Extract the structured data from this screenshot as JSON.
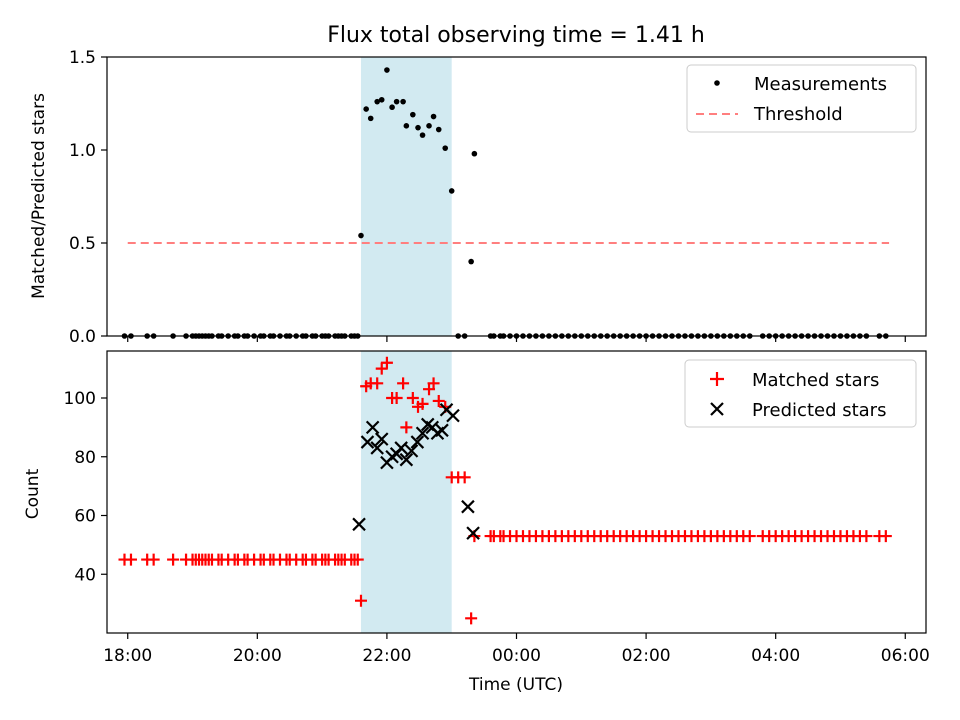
{
  "title": "Flux total observing time = 1.41 h",
  "colors": {
    "measurement": "#000000",
    "threshold": "#ff7f7f",
    "matched": "#ff0000",
    "predicted": "#000000",
    "span": "#add8e6"
  },
  "chart_data": [
    {
      "type": "scatter",
      "ylabel": "Matched/Predicted stars",
      "xlim": [
        17.68,
        30.32
      ],
      "ylim": [
        0,
        1.5
      ],
      "yticks": [
        0,
        0.5,
        1.0,
        1.5
      ],
      "ytick_labels": [
        "0.0",
        "0.5",
        "1.0",
        "1.5"
      ],
      "span": [
        21.6,
        23.0
      ],
      "threshold": {
        "label": "Threshold",
        "value": 0.5,
        "x_start": 18.0,
        "x_end": 29.75
      },
      "measurements": {
        "label": "Measurements",
        "x": [
          17.95,
          18.05,
          18.3,
          18.4,
          18.7,
          18.9,
          19.0,
          19.05,
          19.1,
          19.15,
          19.2,
          19.25,
          19.3,
          19.4,
          19.45,
          19.55,
          19.65,
          19.7,
          19.8,
          19.85,
          19.95,
          20.05,
          20.1,
          20.2,
          20.25,
          20.35,
          20.45,
          20.5,
          20.6,
          20.7,
          20.75,
          20.85,
          20.9,
          21.0,
          21.05,
          21.1,
          21.2,
          21.25,
          21.3,
          21.35,
          21.45,
          21.5,
          21.55,
          21.6,
          21.68,
          21.75,
          21.85,
          21.92,
          22.0,
          22.08,
          22.15,
          22.25,
          22.3,
          22.4,
          22.48,
          22.55,
          22.65,
          22.72,
          22.8,
          22.9,
          23.0,
          23.1,
          23.2,
          23.3,
          23.35,
          23.6,
          23.65,
          23.75,
          23.8,
          23.9,
          24.0,
          24.1,
          24.2,
          24.3,
          24.4,
          24.5,
          24.6,
          24.7,
          24.8,
          24.9,
          25.0,
          25.1,
          25.2,
          25.3,
          25.4,
          25.5,
          25.6,
          25.7,
          25.8,
          25.9,
          26.0,
          26.1,
          26.2,
          26.3,
          26.4,
          26.5,
          26.6,
          26.7,
          26.8,
          26.9,
          27.0,
          27.1,
          27.2,
          27.3,
          27.4,
          27.5,
          27.6,
          27.8,
          27.9,
          28.0,
          28.1,
          28.2,
          28.3,
          28.4,
          28.5,
          28.6,
          28.7,
          28.8,
          28.9,
          29.0,
          29.1,
          29.2,
          29.3,
          29.4,
          29.6,
          29.7
        ],
        "y": [
          0,
          0,
          0,
          0,
          0,
          0,
          0,
          0,
          0,
          0,
          0,
          0,
          0,
          0,
          0,
          0,
          0,
          0,
          0,
          0,
          0,
          0,
          0,
          0,
          0,
          0,
          0,
          0,
          0,
          0,
          0,
          0,
          0,
          0,
          0,
          0,
          0,
          0,
          0,
          0,
          0,
          0,
          0,
          0.54,
          1.22,
          1.17,
          1.26,
          1.27,
          1.43,
          1.23,
          1.26,
          1.26,
          1.13,
          1.19,
          1.12,
          1.08,
          1.13,
          1.18,
          1.11,
          1.01,
          0.78,
          0,
          0,
          0.4,
          0.98,
          0,
          0,
          0,
          0,
          0,
          0,
          0,
          0,
          0,
          0,
          0,
          0,
          0,
          0,
          0,
          0,
          0,
          0,
          0,
          0,
          0,
          0,
          0,
          0,
          0,
          0,
          0,
          0,
          0,
          0,
          0,
          0,
          0,
          0,
          0,
          0,
          0,
          0,
          0,
          0,
          0,
          0,
          0,
          0,
          0,
          0,
          0,
          0,
          0,
          0,
          0,
          0,
          0,
          0,
          0,
          0,
          0,
          0,
          0,
          0,
          0
        ]
      },
      "legend": [
        "Measurements",
        "Threshold"
      ],
      "legend_loc": "upper right"
    },
    {
      "type": "scatter",
      "ylabel": "Count",
      "xlabel": "Time (UTC)",
      "xlim": [
        17.68,
        30.32
      ],
      "ylim": [
        20,
        116
      ],
      "yticks": [
        40,
        60,
        80,
        100
      ],
      "ytick_labels": [
        "40",
        "60",
        "80",
        "100"
      ],
      "xticks": [
        18,
        20,
        22,
        24,
        26,
        28,
        30
      ],
      "xtick_labels": [
        "18:00",
        "20:00",
        "22:00",
        "00:00",
        "02:00",
        "04:00",
        "06:00"
      ],
      "span": [
        21.6,
        23.0
      ],
      "matched": {
        "label": "Matched stars",
        "x": [
          17.95,
          18.05,
          18.3,
          18.4,
          18.7,
          18.9,
          19.0,
          19.05,
          19.1,
          19.15,
          19.2,
          19.25,
          19.3,
          19.4,
          19.45,
          19.55,
          19.65,
          19.7,
          19.8,
          19.85,
          19.95,
          20.05,
          20.1,
          20.2,
          20.25,
          20.35,
          20.45,
          20.5,
          20.6,
          20.7,
          20.75,
          20.85,
          20.9,
          21.0,
          21.05,
          21.1,
          21.2,
          21.25,
          21.3,
          21.35,
          21.45,
          21.5,
          21.55,
          21.6,
          21.68,
          21.75,
          21.85,
          21.92,
          22.0,
          22.08,
          22.15,
          22.25,
          22.3,
          22.4,
          22.48,
          22.55,
          22.65,
          22.72,
          22.8,
          22.9,
          23.0,
          23.1,
          23.2,
          23.3,
          23.35,
          23.6,
          23.65,
          23.75,
          23.8,
          23.9,
          24.0,
          24.1,
          24.2,
          24.3,
          24.4,
          24.5,
          24.6,
          24.7,
          24.8,
          24.9,
          25.0,
          25.1,
          25.2,
          25.3,
          25.4,
          25.5,
          25.6,
          25.7,
          25.8,
          25.9,
          26.0,
          26.1,
          26.2,
          26.3,
          26.4,
          26.5,
          26.6,
          26.7,
          26.8,
          26.9,
          27.0,
          27.1,
          27.2,
          27.3,
          27.4,
          27.5,
          27.6,
          27.8,
          27.9,
          28.0,
          28.1,
          28.2,
          28.3,
          28.4,
          28.5,
          28.6,
          28.7,
          28.8,
          28.9,
          29.0,
          29.1,
          29.2,
          29.3,
          29.4,
          29.6,
          29.7
        ],
        "y": [
          45,
          45,
          45,
          45,
          45,
          45,
          45,
          45,
          45,
          45,
          45,
          45,
          45,
          45,
          45,
          45,
          45,
          45,
          45,
          45,
          45,
          45,
          45,
          45,
          45,
          45,
          45,
          45,
          45,
          45,
          45,
          45,
          45,
          45,
          45,
          45,
          45,
          45,
          45,
          45,
          45,
          45,
          45,
          31,
          104,
          105,
          105,
          110,
          112,
          100,
          100,
          105,
          90,
          100,
          97,
          98,
          103,
          105,
          99,
          97,
          73,
          73,
          73,
          25,
          53,
          53,
          53,
          53,
          53,
          53,
          53,
          53,
          53,
          53,
          53,
          53,
          53,
          53,
          53,
          53,
          53,
          53,
          53,
          53,
          53,
          53,
          53,
          53,
          53,
          53,
          53,
          53,
          53,
          53,
          53,
          53,
          53,
          53,
          53,
          53,
          53,
          53,
          53,
          53,
          53,
          53,
          53,
          53,
          53,
          53,
          53,
          53,
          53,
          53,
          53,
          53,
          53,
          53,
          53,
          53,
          53,
          53,
          53,
          53,
          53,
          53
        ]
      },
      "predicted": {
        "label": "Predicted stars",
        "x": [
          21.57,
          21.7,
          21.78,
          21.85,
          21.92,
          22.0,
          22.08,
          22.15,
          22.22,
          22.3,
          22.38,
          22.47,
          22.55,
          22.63,
          22.7,
          22.78,
          22.85,
          22.92,
          23.02,
          23.25,
          23.33
        ],
        "y": [
          57,
          85,
          90,
          83,
          86,
          78,
          80,
          81,
          83,
          79,
          82,
          85,
          88,
          91,
          90,
          88,
          89,
          96,
          94,
          63,
          54
        ]
      },
      "legend": [
        "Matched stars",
        "Predicted stars"
      ],
      "legend_loc": "upper right"
    }
  ]
}
